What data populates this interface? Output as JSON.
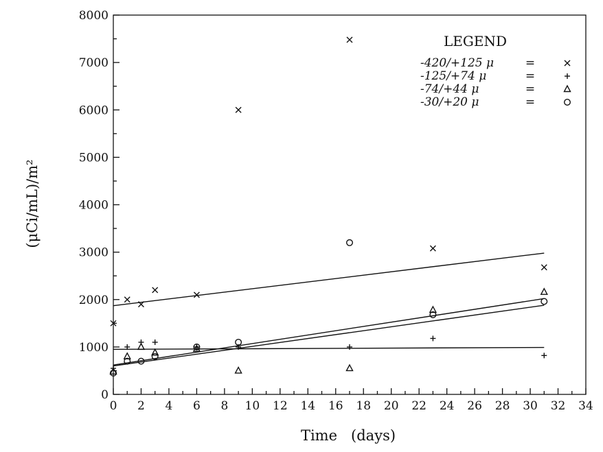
{
  "chart_data": {
    "type": "scatter",
    "title": "",
    "xlabel": "Time   (days)",
    "ylabel": "(μCi/mL)/m²",
    "xlim": [
      0,
      34
    ],
    "ylim": [
      0,
      8000
    ],
    "x_ticks": [
      0,
      2,
      4,
      6,
      8,
      10,
      12,
      14,
      16,
      18,
      20,
      22,
      24,
      26,
      28,
      30,
      32,
      34
    ],
    "y_ticks": [
      0,
      1000,
      2000,
      3000,
      4000,
      5000,
      6000,
      7000,
      8000
    ],
    "grid": false,
    "legend_position": "top-right",
    "legend_title": "LEGEND",
    "series": [
      {
        "name": "-420/+125 μ",
        "marker": "x",
        "points": [
          [
            0,
            1500
          ],
          [
            1,
            2000
          ],
          [
            2,
            1900
          ],
          [
            3,
            2200
          ],
          [
            6,
            2100
          ],
          [
            9,
            6000
          ],
          [
            17,
            7480
          ],
          [
            23,
            3080
          ],
          [
            31,
            2680
          ]
        ],
        "fit": [
          [
            0,
            1870
          ],
          [
            31,
            2980
          ]
        ]
      },
      {
        "name": "-125/+74 μ",
        "marker": "plus",
        "points": [
          [
            0,
            550
          ],
          [
            1,
            1000
          ],
          [
            2,
            1100
          ],
          [
            3,
            1100
          ],
          [
            6,
            1000
          ],
          [
            9,
            1000
          ],
          [
            17,
            1000
          ],
          [
            23,
            1180
          ],
          [
            31,
            820
          ]
        ],
        "fit": [
          [
            0,
            950
          ],
          [
            31,
            990
          ]
        ]
      },
      {
        "name": "-74/+44 μ",
        "marker": "triangle",
        "points": [
          [
            0,
            480
          ],
          [
            1,
            800
          ],
          [
            2,
            1000
          ],
          [
            3,
            880
          ],
          [
            6,
            960
          ],
          [
            9,
            500
          ],
          [
            17,
            550
          ],
          [
            23,
            1780
          ],
          [
            31,
            2160
          ]
        ],
        "fit": [
          [
            0,
            620
          ],
          [
            31,
            2020
          ]
        ]
      },
      {
        "name": "-30/+20 μ",
        "marker": "circle",
        "points": [
          [
            0,
            450
          ],
          [
            1,
            700
          ],
          [
            2,
            700
          ],
          [
            3,
            800
          ],
          [
            6,
            1000
          ],
          [
            9,
            1100
          ],
          [
            17,
            3200
          ],
          [
            23,
            1680
          ],
          [
            31,
            1960
          ]
        ],
        "fit": [
          [
            0,
            600
          ],
          [
            31,
            1880
          ]
        ]
      }
    ]
  },
  "legend_equals": "="
}
